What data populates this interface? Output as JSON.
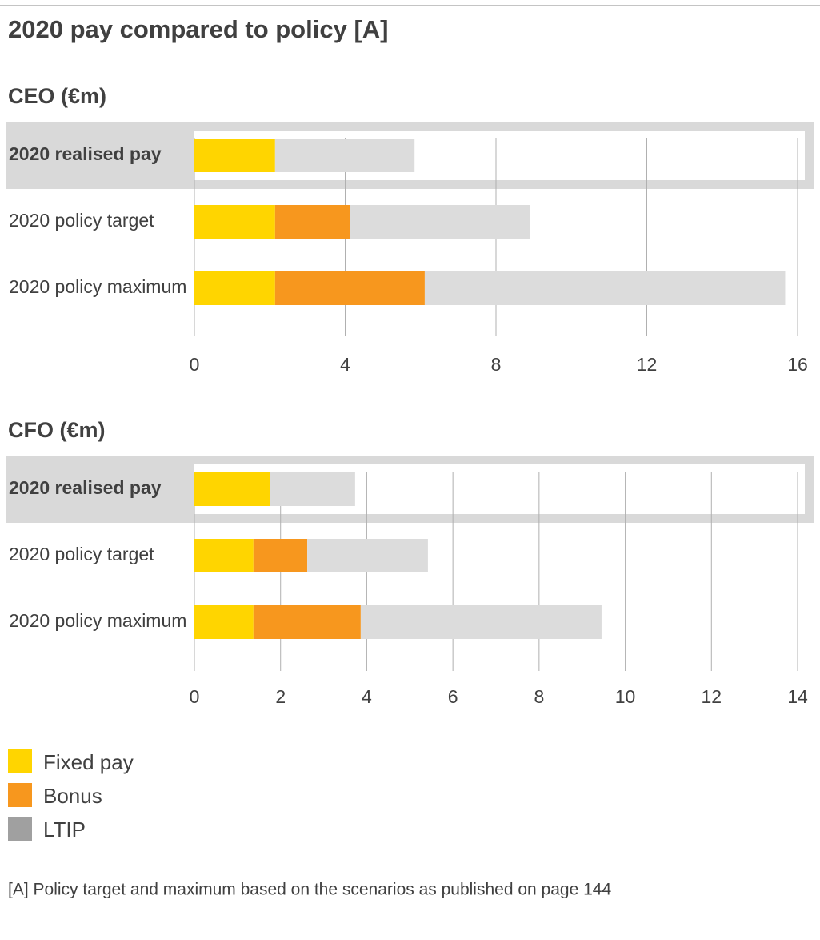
{
  "title": "2020 pay compared to policy [A]",
  "footnote": "[A] Policy target and maximum based on the scenarios as published on page 144",
  "chart_data": [
    {
      "type": "bar",
      "orientation": "horizontal",
      "stacked": true,
      "title": "CEO (€m)",
      "categories": [
        "2020 realised pay",
        "2020 policy target",
        "2020 policy maximum"
      ],
      "series": [
        {
          "name": "Fixed pay",
          "color": "#ffd500",
          "legend_color": "#ffd500",
          "values": [
            2.14,
            2.14,
            2.14
          ]
        },
        {
          "name": "Bonus",
          "color": "#f7971e",
          "legend_color": "#f7971e",
          "values": [
            0,
            1.98,
            3.97
          ]
        },
        {
          "name": "LTIP",
          "color": "#dcdcdc",
          "legend_color": "#a0a0a0",
          "values": [
            3.7,
            4.78,
            9.56
          ]
        }
      ],
      "xlim": [
        0,
        16
      ],
      "xticks": [
        0,
        4,
        8,
        12,
        16
      ],
      "grid": true
    },
    {
      "type": "bar",
      "orientation": "horizontal",
      "stacked": true,
      "title": "CFO (€m)",
      "categories": [
        "2020 realised pay",
        "2020 policy target",
        "2020 policy maximum"
      ],
      "series": [
        {
          "name": "Fixed pay",
          "color": "#ffd500",
          "values": [
            1.75,
            1.37,
            1.37
          ]
        },
        {
          "name": "Bonus",
          "color": "#f7971e",
          "values": [
            0,
            1.25,
            2.49
          ]
        },
        {
          "name": "LTIP",
          "color": "#dcdcdc",
          "values": [
            1.98,
            2.8,
            5.59
          ]
        }
      ],
      "xlim": [
        0,
        14
      ],
      "xticks": [
        0,
        2,
        4,
        6,
        8,
        10,
        12,
        14
      ],
      "grid": true
    }
  ]
}
